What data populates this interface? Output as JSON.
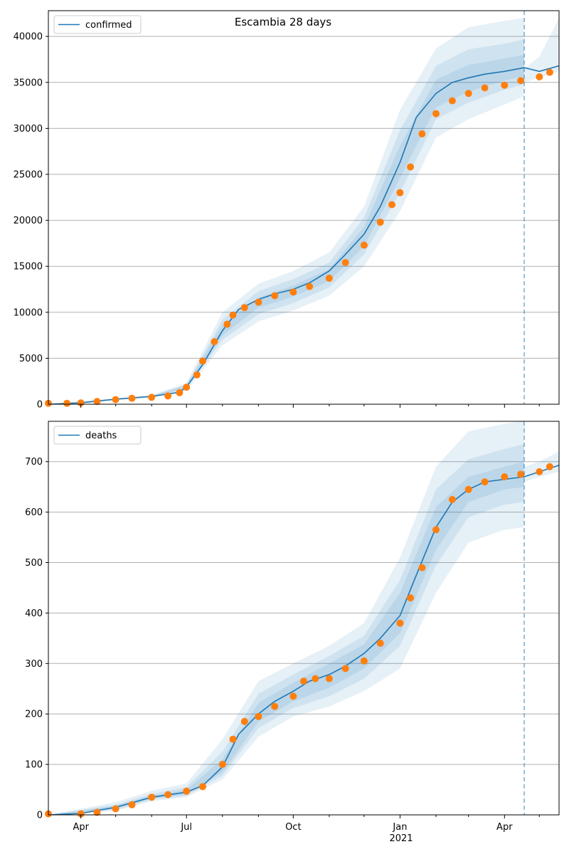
{
  "figure": {
    "title": "Escambia 28 days"
  },
  "colors": {
    "model_line": "#1f77b4",
    "band": "#1f77b4",
    "observed": "#ff7f0e",
    "grid": "#b0b0b0",
    "axis": "#000000",
    "forecast_marker": "#1f77b4"
  },
  "x_axis": {
    "major_ticks": [
      {
        "date": "2020-04-01",
        "label": "Apr"
      },
      {
        "date": "2020-07-01",
        "label": "Jul"
      },
      {
        "date": "2020-10-01",
        "label": "Oct"
      },
      {
        "date": "2021-01-01",
        "label": "Jan"
      },
      {
        "date": "2021-04-01",
        "label": "Apr"
      }
    ],
    "year_label": "2021",
    "range": [
      "2020-03-04",
      "2021-05-18"
    ]
  },
  "chart_data": [
    {
      "type": "line",
      "legend": {
        "entries": [
          "confirmed"
        ],
        "position": "upper-left"
      },
      "grid": "horizontal",
      "xlim": [
        "2020-03-04",
        "2021-05-18"
      ],
      "ylim": [
        0,
        42800
      ],
      "yticks": [
        0,
        5000,
        10000,
        15000,
        20000,
        25000,
        30000,
        35000,
        40000
      ],
      "forecast_start": "2021-04-18",
      "series": [
        {
          "name": "confirmed",
          "kind": "model",
          "x": [
            "2020-03-04",
            "2020-04-01",
            "2020-05-01",
            "2020-06-01",
            "2020-06-25",
            "2020-07-01",
            "2020-07-15",
            "2020-08-01",
            "2020-08-15",
            "2020-09-01",
            "2020-09-15",
            "2020-10-01",
            "2020-10-15",
            "2020-11-01",
            "2020-11-15",
            "2020-12-01",
            "2020-12-15",
            "2021-01-01",
            "2021-01-15",
            "2021-02-01",
            "2021-02-15",
            "2021-03-01",
            "2021-03-15",
            "2021-04-01",
            "2021-04-18",
            "2021-05-01",
            "2021-05-18"
          ],
          "y": [
            0,
            150,
            550,
            850,
            1300,
            1900,
            4300,
            8000,
            10300,
            11400,
            12000,
            12500,
            13200,
            14500,
            16300,
            18500,
            21500,
            26300,
            31200,
            33800,
            35000,
            35500,
            35900,
            36200,
            36600,
            36200,
            36800
          ]
        },
        {
          "name": "observed",
          "kind": "observed",
          "x": [
            "2020-03-04",
            "2020-03-20",
            "2020-04-01",
            "2020-04-15",
            "2020-05-01",
            "2020-05-15",
            "2020-06-01",
            "2020-06-15",
            "2020-06-25",
            "2020-07-01",
            "2020-07-10",
            "2020-07-15",
            "2020-07-25",
            "2020-08-05",
            "2020-08-10",
            "2020-08-20",
            "2020-09-01",
            "2020-09-15",
            "2020-10-01",
            "2020-10-15",
            "2020-11-01",
            "2020-11-15",
            "2020-12-01",
            "2020-12-15",
            "2020-12-25",
            "2021-01-01",
            "2021-01-10",
            "2021-01-20",
            "2021-02-01",
            "2021-02-15",
            "2021-03-01",
            "2021-03-15",
            "2021-04-01",
            "2021-04-15",
            "2021-05-01",
            "2021-05-10"
          ],
          "y": [
            100,
            100,
            150,
            300,
            500,
            650,
            750,
            900,
            1250,
            1850,
            3200,
            4700,
            6800,
            8700,
            9700,
            10500,
            11100,
            11800,
            12200,
            12800,
            13700,
            15400,
            17300,
            19800,
            21700,
            23000,
            25800,
            29400,
            31600,
            33000,
            33800,
            34400,
            34700,
            35200,
            35600,
            36100
          ]
        }
      ],
      "bands": [
        {
          "x": [
            "2020-03-04",
            "2020-06-01",
            "2020-07-01",
            "2020-08-01",
            "2020-09-01",
            "2020-10-01",
            "2020-11-01",
            "2020-12-01",
            "2021-01-01",
            "2021-02-01",
            "2021-03-01",
            "2021-04-01",
            "2021-04-18"
          ],
          "lower": [
            0,
            700,
            1500,
            6400,
            9000,
            10200,
            11800,
            15000,
            21000,
            29000,
            31000,
            32600,
            33500
          ],
          "upper": [
            0,
            1000,
            2300,
            10000,
            13100,
            14500,
            16500,
            21500,
            32000,
            38700,
            41000,
            41700,
            42000
          ]
        },
        {
          "x": [
            "2020-03-04",
            "2020-06-01",
            "2020-07-01",
            "2020-08-01",
            "2020-09-01",
            "2020-10-01",
            "2020-11-01",
            "2020-12-01",
            "2021-01-01",
            "2021-02-01",
            "2021-03-01",
            "2021-04-01",
            "2021-04-18"
          ],
          "lower": [
            0,
            760,
            1650,
            7000,
            9800,
            11000,
            12700,
            16300,
            23000,
            31000,
            32800,
            34200,
            34800
          ],
          "upper": [
            0,
            940,
            2150,
            9200,
            12300,
            13600,
            15400,
            20300,
            29800,
            36800,
            38600,
            39200,
            39700
          ]
        },
        {
          "x": [
            "2020-03-04",
            "2020-06-01",
            "2020-07-01",
            "2020-08-01",
            "2020-09-01",
            "2020-10-01",
            "2020-11-01",
            "2020-12-01",
            "2021-01-01",
            "2021-02-01",
            "2021-03-01",
            "2021-04-01",
            "2021-04-18"
          ],
          "lower": [
            0,
            800,
            1750,
            7500,
            10500,
            11700,
            13400,
            17200,
            24600,
            32300,
            34000,
            35200,
            35700
          ],
          "upper": [
            0,
            900,
            2050,
            8600,
            11600,
            12900,
            14700,
            19300,
            28100,
            35300,
            36900,
            37600,
            38000
          ]
        },
        {
          "x": [
            "2021-04-18",
            "2021-05-01",
            "2021-05-18"
          ],
          "lower": [
            35000,
            35500,
            36200
          ],
          "upper": [
            36500,
            37800,
            42000
          ]
        }
      ]
    },
    {
      "type": "line",
      "legend": {
        "entries": [
          "deaths"
        ],
        "position": "upper-left"
      },
      "grid": "horizontal",
      "xlim": [
        "2020-03-04",
        "2021-05-18"
      ],
      "ylim": [
        0,
        780
      ],
      "yticks": [
        0,
        100,
        200,
        300,
        400,
        500,
        600,
        700
      ],
      "forecast_start": "2021-04-18",
      "series": [
        {
          "name": "deaths",
          "kind": "model",
          "x": [
            "2020-03-04",
            "2020-04-01",
            "2020-05-01",
            "2020-06-01",
            "2020-07-01",
            "2020-07-15",
            "2020-08-01",
            "2020-08-15",
            "2020-09-01",
            "2020-09-15",
            "2020-10-01",
            "2020-10-15",
            "2020-11-01",
            "2020-11-15",
            "2020-12-01",
            "2020-12-15",
            "2021-01-01",
            "2021-01-15",
            "2021-02-01",
            "2021-02-15",
            "2021-03-01",
            "2021-03-15",
            "2021-04-01",
            "2021-04-18",
            "2021-05-01",
            "2021-05-18"
          ],
          "y": [
            0,
            3,
            15,
            35,
            45,
            58,
            95,
            160,
            200,
            225,
            245,
            265,
            278,
            295,
            320,
            350,
            395,
            475,
            570,
            620,
            645,
            660,
            665,
            670,
            680,
            693
          ]
        },
        {
          "name": "observed",
          "kind": "observed",
          "x": [
            "2020-03-04",
            "2020-04-01",
            "2020-04-15",
            "2020-05-01",
            "2020-05-15",
            "2020-06-01",
            "2020-06-15",
            "2020-07-01",
            "2020-07-15",
            "2020-08-01",
            "2020-08-10",
            "2020-08-20",
            "2020-09-01",
            "2020-09-15",
            "2020-10-01",
            "2020-10-10",
            "2020-10-20",
            "2020-11-01",
            "2020-11-15",
            "2020-12-01",
            "2020-12-15",
            "2021-01-01",
            "2021-01-10",
            "2021-01-20",
            "2021-02-01",
            "2021-02-15",
            "2021-03-01",
            "2021-03-15",
            "2021-04-01",
            "2021-04-15",
            "2021-05-01",
            "2021-05-10"
          ],
          "y": [
            2,
            2,
            5,
            12,
            20,
            35,
            40,
            47,
            56,
            100,
            150,
            185,
            195,
            215,
            235,
            265,
            270,
            270,
            290,
            305,
            340,
            380,
            430,
            490,
            565,
            625,
            645,
            660,
            670,
            675,
            680,
            690
          ]
        }
      ],
      "bands": [
        {
          "x": [
            "2020-03-04",
            "2020-05-01",
            "2020-06-01",
            "2020-07-01",
            "2020-08-01",
            "2020-09-01",
            "2020-10-01",
            "2020-11-01",
            "2020-12-01",
            "2021-01-01",
            "2021-02-01",
            "2021-03-01",
            "2021-04-01",
            "2021-04-18"
          ],
          "lower": [
            0,
            8,
            27,
            35,
            70,
            155,
            195,
            215,
            245,
            290,
            440,
            540,
            565,
            570
          ],
          "upper": [
            0,
            25,
            48,
            62,
            150,
            265,
            300,
            335,
            380,
            510,
            690,
            760,
            775,
            780
          ]
        },
        {
          "x": [
            "2020-03-04",
            "2020-05-01",
            "2020-06-01",
            "2020-07-01",
            "2020-08-01",
            "2020-09-01",
            "2020-10-01",
            "2020-11-01",
            "2020-12-01",
            "2021-01-01",
            "2021-02-01",
            "2021-03-01",
            "2021-04-01",
            "2021-04-18"
          ],
          "lower": [
            0,
            10,
            30,
            38,
            78,
            172,
            212,
            235,
            270,
            335,
            495,
            590,
            615,
            620
          ],
          "upper": [
            0,
            20,
            42,
            55,
            125,
            240,
            278,
            315,
            355,
            465,
            645,
            705,
            725,
            735
          ]
        },
        {
          "x": [
            "2020-03-04",
            "2020-05-01",
            "2020-06-01",
            "2020-07-01",
            "2020-08-01",
            "2020-09-01",
            "2020-10-01",
            "2020-11-01",
            "2020-12-01",
            "2021-01-01",
            "2021-02-01",
            "2021-03-01",
            "2021-04-01",
            "2021-04-18"
          ],
          "lower": [
            0,
            12,
            32,
            41,
            84,
            185,
            225,
            252,
            290,
            360,
            525,
            620,
            645,
            650
          ],
          "upper": [
            0,
            18,
            38,
            50,
            110,
            222,
            262,
            300,
            338,
            440,
            610,
            670,
            690,
            700
          ]
        },
        {
          "x": [
            "2021-04-18",
            "2021-05-01",
            "2021-05-18"
          ],
          "lower": [
            660,
            670,
            680
          ],
          "upper": [
            690,
            700,
            720
          ]
        }
      ]
    }
  ]
}
